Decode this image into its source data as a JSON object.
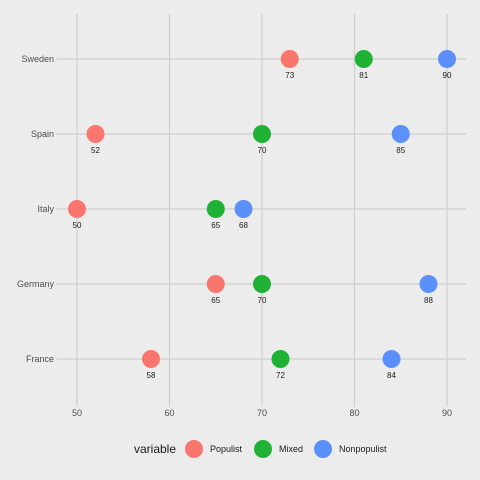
{
  "chart_data": {
    "type": "scatter",
    "title": "",
    "xlabel": "",
    "ylabel": "",
    "xlim": [
      48,
      92
    ],
    "x_ticks": [
      50,
      60,
      70,
      80,
      90
    ],
    "categories": [
      "France",
      "Germany",
      "Italy",
      "Spain",
      "Sweden"
    ],
    "grid": true,
    "legend_position": "bottom",
    "legend_title": "variable",
    "series": [
      {
        "name": "Populist",
        "color": "#f8766d",
        "values": [
          58,
          65,
          50,
          52,
          73
        ]
      },
      {
        "name": "Mixed",
        "color": "#1fb234",
        "values": [
          72,
          70,
          65,
          70,
          81
        ]
      },
      {
        "name": "Nonpopulist",
        "color": "#5b8ff9",
        "values": [
          84,
          88,
          68,
          85,
          90
        ]
      }
    ]
  }
}
